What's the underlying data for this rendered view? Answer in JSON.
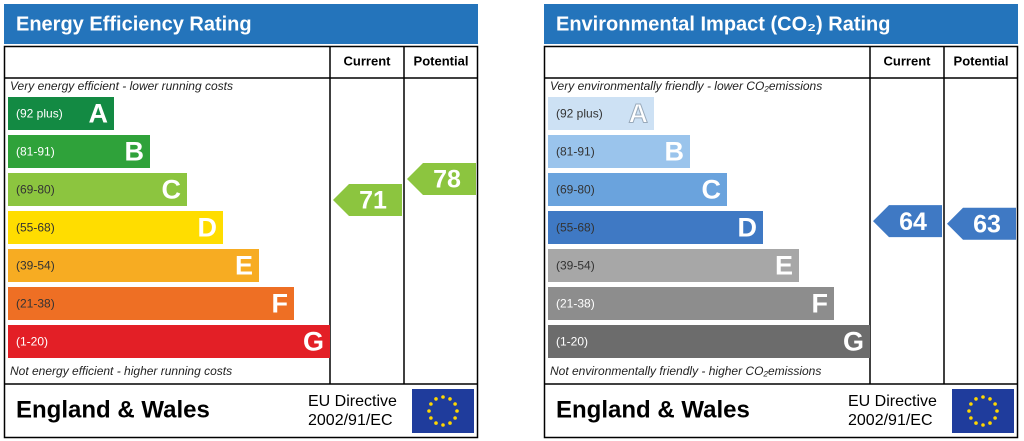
{
  "panels": [
    {
      "title": "Energy Efficiency Rating",
      "headers": [
        "Current",
        "Potential"
      ],
      "top_note": "Very energy efficient - lower running costs",
      "bottom_note": "Not energy efficient - higher running costs",
      "bands": [
        {
          "range": "(92 plus)",
          "letter": "A",
          "color": "#138a43",
          "text_color": "#ffffff"
        },
        {
          "range": "(81-91)",
          "letter": "B",
          "color": "#2fa23a",
          "text_color": "#ffffff"
        },
        {
          "range": "(69-80)",
          "letter": "C",
          "color": "#8cc53f",
          "text_color": "#333333"
        },
        {
          "range": "(55-68)",
          "letter": "D",
          "color": "#ffdd00",
          "text_color": "#333333"
        },
        {
          "range": "(39-54)",
          "letter": "E",
          "color": "#f7ac22",
          "text_color": "#333333"
        },
        {
          "range": "(21-38)",
          "letter": "F",
          "color": "#ee6f24",
          "text_color": "#333333"
        },
        {
          "range": "(1-20)",
          "letter": "G",
          "color": "#e31f26",
          "text_color": "#ffffff"
        }
      ],
      "current": 71,
      "potential": 78,
      "footer": "England & Wales",
      "directive": [
        "EU Directive",
        "2002/91/EC"
      ]
    },
    {
      "title": "Environmental Impact (CO₂) Rating",
      "headers": [
        "Current",
        "Potential"
      ],
      "top_note": "Very environmentally friendly - lower CO₂emissions",
      "bottom_note": "Not environmentally friendly - higher CO₂emissions",
      "bands": [
        {
          "range": "(92 plus)",
          "letter": "A",
          "color": "#cde1f4",
          "text_color": "#333333"
        },
        {
          "range": "(81-91)",
          "letter": "B",
          "color": "#9ac4ec",
          "text_color": "#333333"
        },
        {
          "range": "(69-80)",
          "letter": "C",
          "color": "#6aa3dd",
          "text_color": "#333333"
        },
        {
          "range": "(55-68)",
          "letter": "D",
          "color": "#3f79c4",
          "text_color": "#333333"
        },
        {
          "range": "(39-54)",
          "letter": "E",
          "color": "#a7a7a7",
          "text_color": "#333333"
        },
        {
          "range": "(21-38)",
          "letter": "F",
          "color": "#8d8d8d",
          "text_color": "#ffffff"
        },
        {
          "range": "(1-20)",
          "letter": "G",
          "color": "#6c6c6c",
          "text_color": "#ffffff"
        }
      ],
      "current": 64,
      "potential": 63,
      "footer": "England & Wales",
      "directive": [
        "EU Directive",
        "2002/91/EC"
      ]
    }
  ]
}
